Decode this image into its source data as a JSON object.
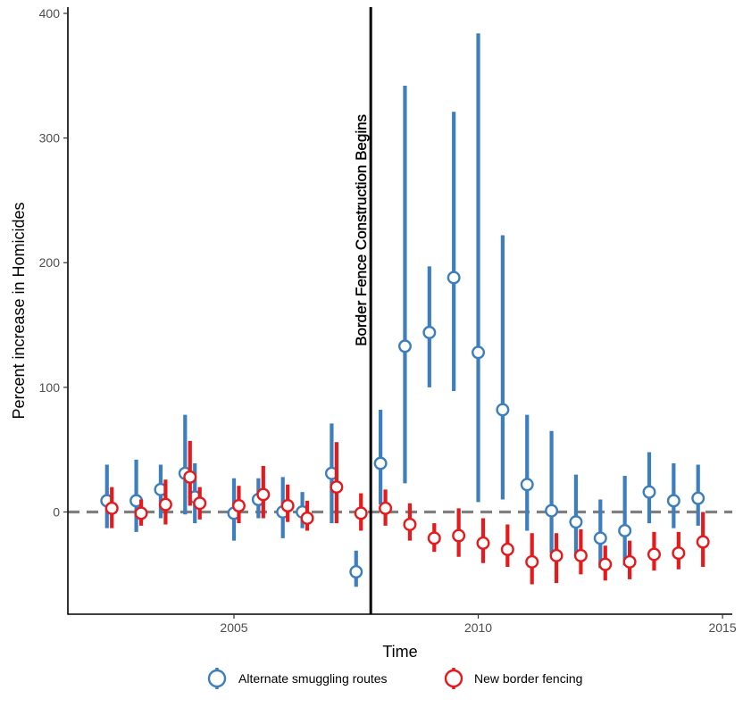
{
  "chart_data": {
    "type": "scatter",
    "title": "",
    "xlabel": "Time",
    "ylabel": "Percent increase in Homicides",
    "xlim": [
      2001.6,
      2015.2
    ],
    "ylim": [
      -82,
      405
    ],
    "x_ticks": [
      2005,
      2010,
      2015
    ],
    "y_ticks": [
      0,
      100,
      200,
      300,
      400
    ],
    "reference_line": {
      "x": 2007.8,
      "label": "Border Fence Construction Begins"
    },
    "baseline_y": 0,
    "legend_position": "bottom",
    "series": [
      {
        "name": "Alternate smuggling routes",
        "color": "#3d7ebf",
        "points": [
          {
            "x": 2002.4,
            "y": 9,
            "low": -13,
            "high": 38
          },
          {
            "x": 2003.0,
            "y": 9,
            "low": -16,
            "high": 42
          },
          {
            "x": 2003.5,
            "y": 18,
            "low": -5,
            "high": 38
          },
          {
            "x": 2004.0,
            "y": 31,
            "low": -2,
            "high": 78
          },
          {
            "x": 2004.2,
            "y": 12,
            "low": -9,
            "high": 39
          },
          {
            "x": 2005.0,
            "y": -1,
            "low": -23,
            "high": 27
          },
          {
            "x": 2005.5,
            "y": 10,
            "low": -5,
            "high": 27
          },
          {
            "x": 2006.0,
            "y": 0,
            "low": -21,
            "high": 28
          },
          {
            "x": 2006.4,
            "y": 0,
            "low": -13,
            "high": 16
          },
          {
            "x": 2007.0,
            "y": 31,
            "low": -9,
            "high": 71
          },
          {
            "x": 2007.5,
            "y": -48,
            "low": -60,
            "high": -31
          },
          {
            "x": 2008.0,
            "y": 39,
            "low": 6,
            "high": 82
          },
          {
            "x": 2008.5,
            "y": 133,
            "low": 23,
            "high": 342
          },
          {
            "x": 2009.0,
            "y": 144,
            "low": 100,
            "high": 197
          },
          {
            "x": 2009.5,
            "y": 188,
            "low": 97,
            "high": 321
          },
          {
            "x": 2010.0,
            "y": 128,
            "low": 8,
            "high": 384
          },
          {
            "x": 2010.5,
            "y": 82,
            "low": 10,
            "high": 222
          },
          {
            "x": 2011.0,
            "y": 22,
            "low": -15,
            "high": 78
          },
          {
            "x": 2011.5,
            "y": 1,
            "low": -33,
            "high": 65
          },
          {
            "x": 2012.0,
            "y": -8,
            "low": -35,
            "high": 30
          },
          {
            "x": 2012.5,
            "y": -21,
            "low": -45,
            "high": 10
          },
          {
            "x": 2013.0,
            "y": -15,
            "low": -43,
            "high": 29
          },
          {
            "x": 2013.5,
            "y": 16,
            "low": -9,
            "high": 48
          },
          {
            "x": 2014.0,
            "y": 9,
            "low": -13,
            "high": 39
          },
          {
            "x": 2014.5,
            "y": 11,
            "low": -11,
            "high": 38
          }
        ]
      },
      {
        "name": "New border fencing",
        "color": "#e41a1c",
        "points": [
          {
            "x": 2002.5,
            "y": 3,
            "low": -13,
            "high": 20
          },
          {
            "x": 2003.1,
            "y": -1,
            "low": -11,
            "high": 10
          },
          {
            "x": 2003.6,
            "y": 6,
            "low": -10,
            "high": 26
          },
          {
            "x": 2004.1,
            "y": 28,
            "low": 5,
            "high": 57
          },
          {
            "x": 2004.3,
            "y": 7,
            "low": -6,
            "high": 20
          },
          {
            "x": 2005.1,
            "y": 5,
            "low": -9,
            "high": 21
          },
          {
            "x": 2005.6,
            "y": 14,
            "low": -5,
            "high": 37
          },
          {
            "x": 2006.1,
            "y": 5,
            "low": -8,
            "high": 22
          },
          {
            "x": 2006.5,
            "y": -5,
            "low": -15,
            "high": 9
          },
          {
            "x": 2007.1,
            "y": 20,
            "low": -9,
            "high": 56
          },
          {
            "x": 2007.6,
            "y": -1,
            "low": -15,
            "high": 15
          },
          {
            "x": 2008.1,
            "y": 3,
            "low": -11,
            "high": 18
          },
          {
            "x": 2008.6,
            "y": -10,
            "low": -23,
            "high": 7
          },
          {
            "x": 2009.1,
            "y": -21,
            "low": -32,
            "high": -9
          },
          {
            "x": 2009.6,
            "y": -19,
            "low": -36,
            "high": 3
          },
          {
            "x": 2010.1,
            "y": -25,
            "low": -41,
            "high": -5
          },
          {
            "x": 2010.6,
            "y": -30,
            "low": -44,
            "high": -10
          },
          {
            "x": 2011.1,
            "y": -40,
            "low": -58,
            "high": -17
          },
          {
            "x": 2011.6,
            "y": -35,
            "low": -57,
            "high": -17
          },
          {
            "x": 2012.1,
            "y": -35,
            "low": -50,
            "high": -14
          },
          {
            "x": 2012.6,
            "y": -42,
            "low": -55,
            "high": -27
          },
          {
            "x": 2013.1,
            "y": -40,
            "low": -54,
            "high": -23
          },
          {
            "x": 2013.6,
            "y": -34,
            "low": -47,
            "high": -16
          },
          {
            "x": 2014.1,
            "y": -33,
            "low": -46,
            "high": -16
          },
          {
            "x": 2014.6,
            "y": -24,
            "low": -44,
            "high": 0
          }
        ]
      }
    ]
  }
}
